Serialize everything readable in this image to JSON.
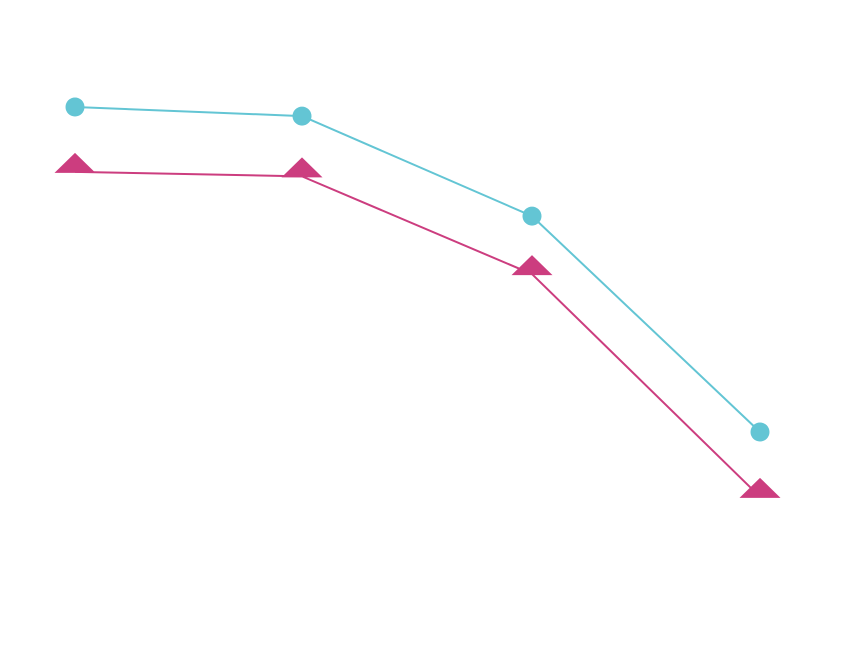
{
  "chart_data": {
    "type": "line",
    "title": "",
    "xlabel": "",
    "ylabel": "",
    "x": [
      1,
      2,
      3,
      4
    ],
    "grid": false,
    "series": [
      {
        "values": [
          1.0,
          0.96,
          0.52,
          -0.43
        ],
        "color": "#63c5d4",
        "marker": "circle"
      },
      {
        "values": [
          0.75,
          0.73,
          0.3,
          -0.68
        ],
        "color": "#cc3d7f",
        "marker": "triangle-up"
      }
    ]
  }
}
